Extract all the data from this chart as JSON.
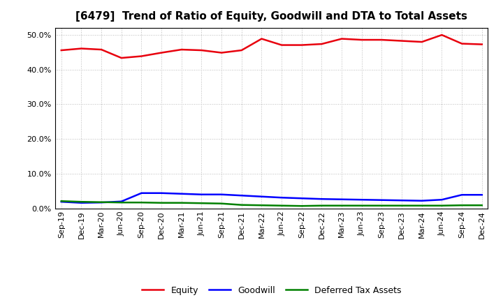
{
  "title": "[6479]  Trend of Ratio of Equity, Goodwill and DTA to Total Assets",
  "x_labels": [
    "Sep-19",
    "Dec-19",
    "Mar-20",
    "Jun-20",
    "Sep-20",
    "Dec-20",
    "Mar-21",
    "Jun-21",
    "Sep-21",
    "Dec-21",
    "Mar-22",
    "Jun-22",
    "Sep-22",
    "Dec-22",
    "Mar-23",
    "Jun-23",
    "Sep-23",
    "Dec-23",
    "Mar-24",
    "Jun-24",
    "Sep-24",
    "Dec-24"
  ],
  "equity": [
    45.5,
    46.0,
    45.7,
    43.3,
    43.8,
    44.8,
    45.7,
    45.5,
    44.8,
    45.5,
    48.8,
    47.0,
    47.0,
    47.3,
    48.8,
    48.5,
    48.5,
    48.2,
    47.9,
    49.9,
    47.4,
    47.2
  ],
  "goodwill": [
    2.0,
    1.7,
    1.8,
    2.1,
    4.5,
    4.5,
    4.3,
    4.1,
    4.1,
    3.8,
    3.5,
    3.2,
    3.0,
    2.8,
    2.7,
    2.6,
    2.5,
    2.4,
    2.3,
    2.6,
    4.0,
    4.0
  ],
  "dta": [
    2.2,
    2.0,
    1.9,
    1.8,
    1.8,
    1.7,
    1.7,
    1.6,
    1.5,
    1.1,
    1.0,
    0.9,
    0.8,
    0.9,
    0.9,
    0.9,
    0.9,
    0.9,
    0.9,
    0.9,
    1.0,
    1.0
  ],
  "equity_color": "#e8000d",
  "goodwill_color": "#0000ff",
  "dta_color": "#008000",
  "ylim": [
    0,
    52
  ],
  "yticks": [
    0,
    10,
    20,
    30,
    40,
    50
  ],
  "ytick_labels": [
    "0.0%",
    "10.0%",
    "20.0%",
    "30.0%",
    "40.0%",
    "50.0%"
  ],
  "background_color": "#ffffff",
  "plot_bg_color": "#ffffff",
  "grid_color": "#bbbbbb",
  "linewidth": 1.8,
  "legend_labels": [
    "Equity",
    "Goodwill",
    "Deferred Tax Assets"
  ],
  "title_fontsize": 11,
  "tick_fontsize": 8,
  "legend_fontsize": 9
}
